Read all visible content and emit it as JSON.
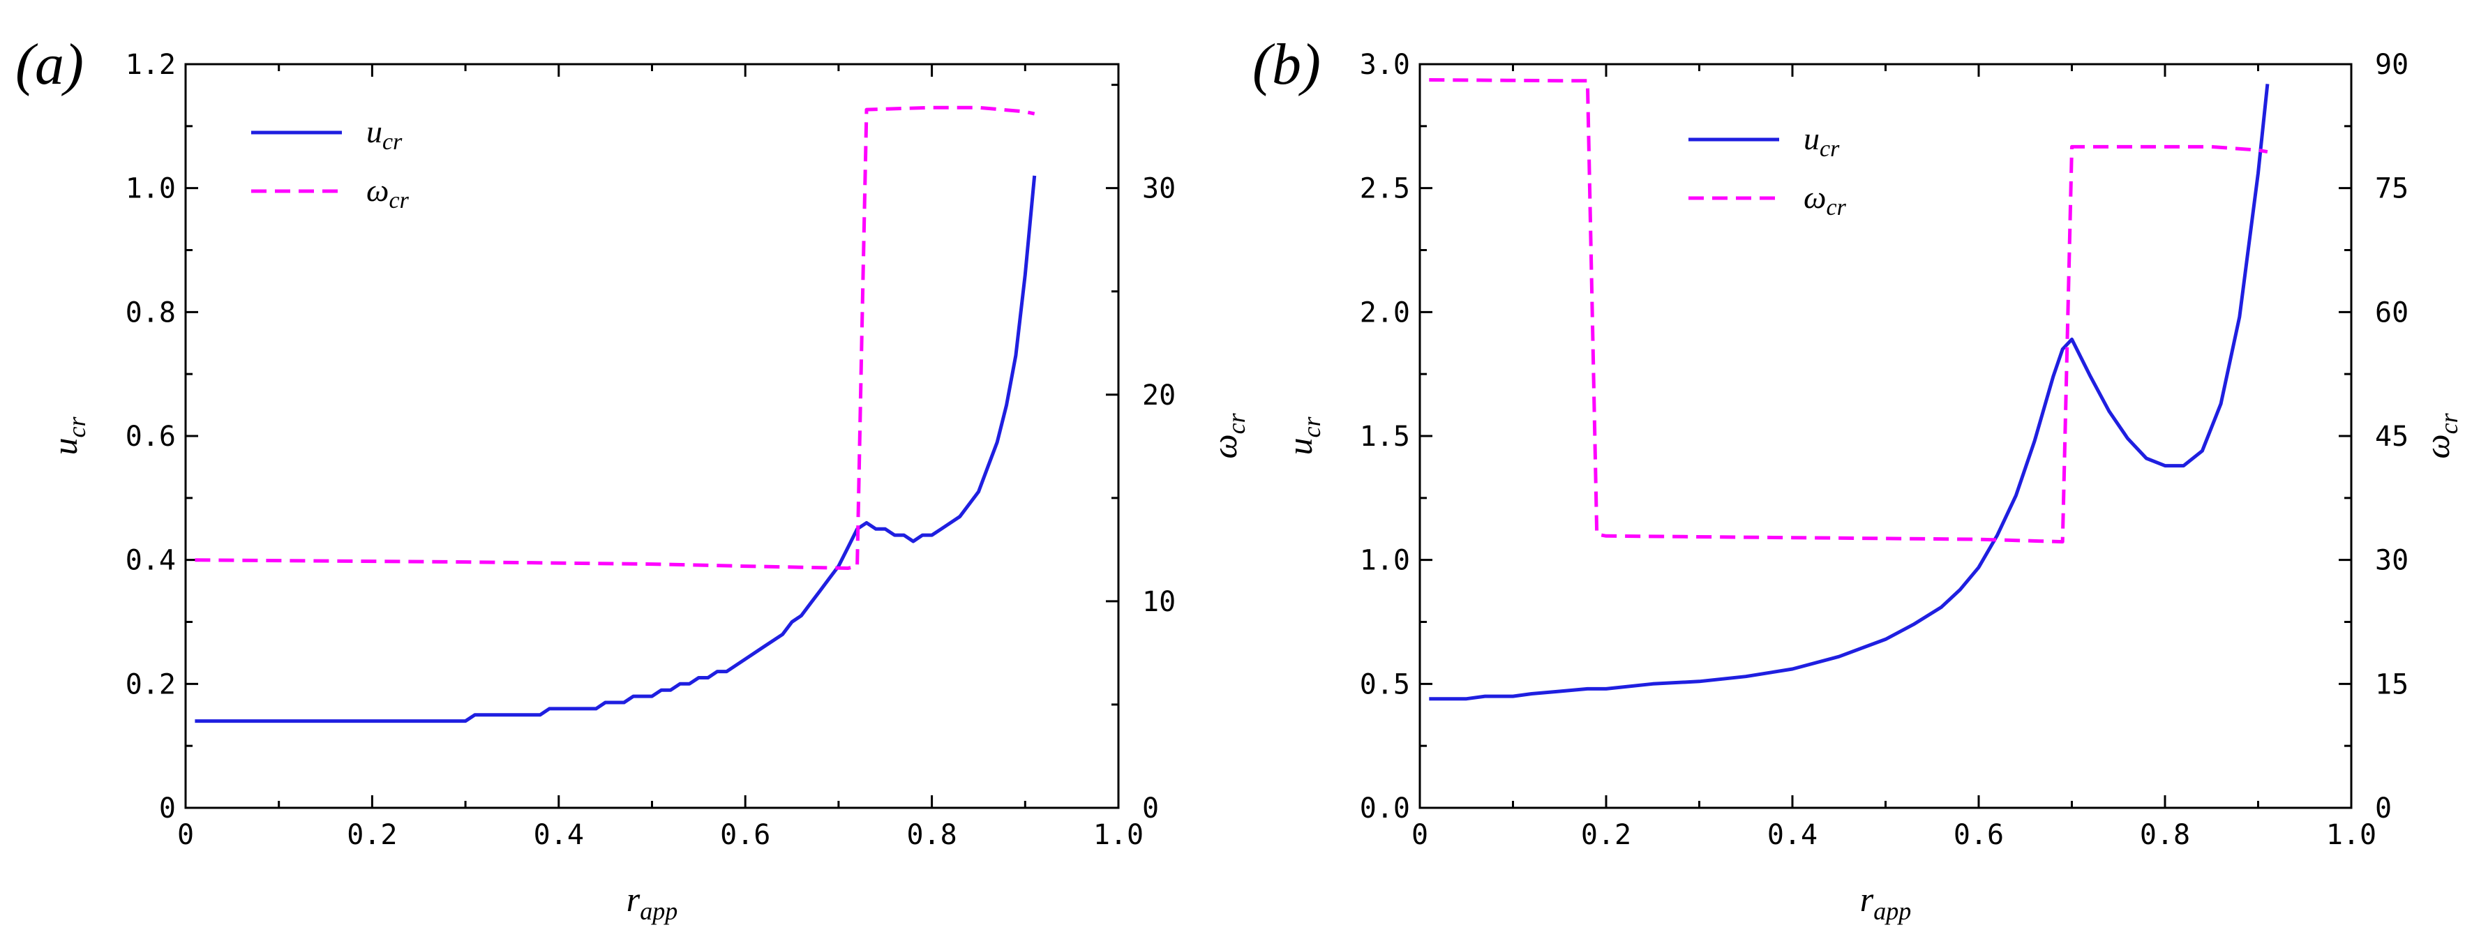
{
  "chart_data": [
    {
      "type": "line",
      "panel_label": "(a)",
      "xlabel": "r",
      "xlabel_sub": "app",
      "ylabel": "u",
      "ylabel_sub": "cr",
      "y2label": "ω",
      "y2label_sub": "cr",
      "xlim": [
        0,
        1.0
      ],
      "ylim": [
        0,
        1.2
      ],
      "y2lim": [
        0,
        36
      ],
      "xticks": [
        "0",
        "0.2",
        "0.4",
        "0.6",
        "0.8",
        "1.0"
      ],
      "yticks": [
        "0",
        "0.2",
        "0.4",
        "0.6",
        "0.8",
        "1.0",
        "1.2"
      ],
      "y2ticks": [
        "0",
        "10",
        "20",
        "30"
      ],
      "legend_position": "top-left",
      "series": [
        {
          "name": "u",
          "name_sub": "cr",
          "axis": "left",
          "style": "solid",
          "color": "#1f1fe0",
          "x": [
            0.01,
            0.1,
            0.2,
            0.3,
            0.31,
            0.38,
            0.39,
            0.44,
            0.45,
            0.47,
            0.48,
            0.5,
            0.51,
            0.52,
            0.53,
            0.54,
            0.55,
            0.56,
            0.57,
            0.58,
            0.6,
            0.62,
            0.64,
            0.65,
            0.66,
            0.67,
            0.68,
            0.69,
            0.7,
            0.71,
            0.72,
            0.73,
            0.74,
            0.75,
            0.76,
            0.77,
            0.78,
            0.79,
            0.8,
            0.81,
            0.82,
            0.83,
            0.85,
            0.86,
            0.87,
            0.88,
            0.89,
            0.9,
            0.91
          ],
          "values": [
            0.14,
            0.14,
            0.14,
            0.14,
            0.15,
            0.15,
            0.16,
            0.16,
            0.17,
            0.17,
            0.18,
            0.18,
            0.19,
            0.19,
            0.2,
            0.2,
            0.21,
            0.21,
            0.22,
            0.22,
            0.24,
            0.26,
            0.28,
            0.3,
            0.31,
            0.33,
            0.35,
            0.37,
            0.39,
            0.42,
            0.45,
            0.46,
            0.45,
            0.45,
            0.44,
            0.44,
            0.43,
            0.44,
            0.44,
            0.45,
            0.46,
            0.47,
            0.51,
            0.55,
            0.59,
            0.65,
            0.73,
            0.86,
            1.02
          ]
        },
        {
          "name": "ω",
          "name_sub": "cr",
          "axis": "right",
          "style": "dashed",
          "color": "#ff00ff",
          "x": [
            0.01,
            0.3,
            0.5,
            0.6,
            0.71,
            0.72,
            0.725,
            0.73,
            0.8,
            0.85,
            0.9,
            0.91
          ],
          "values": [
            12.0,
            11.9,
            11.8,
            11.7,
            11.6,
            11.7,
            23.0,
            33.8,
            33.9,
            33.9,
            33.7,
            33.6
          ]
        }
      ]
    },
    {
      "type": "line",
      "panel_label": "(b)",
      "xlabel": "r",
      "xlabel_sub": "app",
      "ylabel": "u",
      "ylabel_sub": "cr",
      "y2label": "ω",
      "y2label_sub": "cr",
      "xlim": [
        0,
        1.0
      ],
      "ylim": [
        0,
        3.0
      ],
      "y2lim": [
        0,
        90
      ],
      "xticks": [
        "0",
        "0.2",
        "0.4",
        "0.6",
        "0.8",
        "1.0"
      ],
      "yticks": [
        "0.0",
        "0.5",
        "1.0",
        "1.5",
        "2.0",
        "2.5",
        "3.0"
      ],
      "y2ticks": [
        "0",
        "15",
        "30",
        "45",
        "60",
        "75",
        "90"
      ],
      "legend_position": "top-center",
      "series": [
        {
          "name": "u",
          "name_sub": "cr",
          "axis": "left",
          "style": "solid",
          "color": "#1f1fe0",
          "x": [
            0.01,
            0.05,
            0.07,
            0.1,
            0.12,
            0.15,
            0.18,
            0.2,
            0.25,
            0.3,
            0.35,
            0.4,
            0.45,
            0.5,
            0.53,
            0.56,
            0.58,
            0.6,
            0.62,
            0.64,
            0.66,
            0.68,
            0.69,
            0.7,
            0.72,
            0.74,
            0.76,
            0.78,
            0.8,
            0.82,
            0.84,
            0.86,
            0.88,
            0.9,
            0.91
          ],
          "values": [
            0.44,
            0.44,
            0.45,
            0.45,
            0.46,
            0.47,
            0.48,
            0.48,
            0.5,
            0.51,
            0.53,
            0.56,
            0.61,
            0.68,
            0.74,
            0.81,
            0.88,
            0.97,
            1.1,
            1.26,
            1.48,
            1.74,
            1.85,
            1.89,
            1.74,
            1.6,
            1.49,
            1.41,
            1.38,
            1.38,
            1.44,
            1.63,
            1.98,
            2.56,
            2.92
          ]
        },
        {
          "name": "ω",
          "name_sub": "cr",
          "axis": "right",
          "style": "dashed",
          "color": "#ff00ff",
          "x": [
            0.01,
            0.15,
            0.18,
            0.19,
            0.2,
            0.4,
            0.6,
            0.69,
            0.695,
            0.7,
            0.8,
            0.85,
            0.9,
            0.91
          ],
          "values": [
            88.1,
            88.0,
            88.0,
            33.1,
            32.9,
            32.7,
            32.5,
            32.2,
            56.0,
            80.0,
            80.0,
            80.0,
            79.6,
            79.4
          ]
        }
      ]
    }
  ]
}
